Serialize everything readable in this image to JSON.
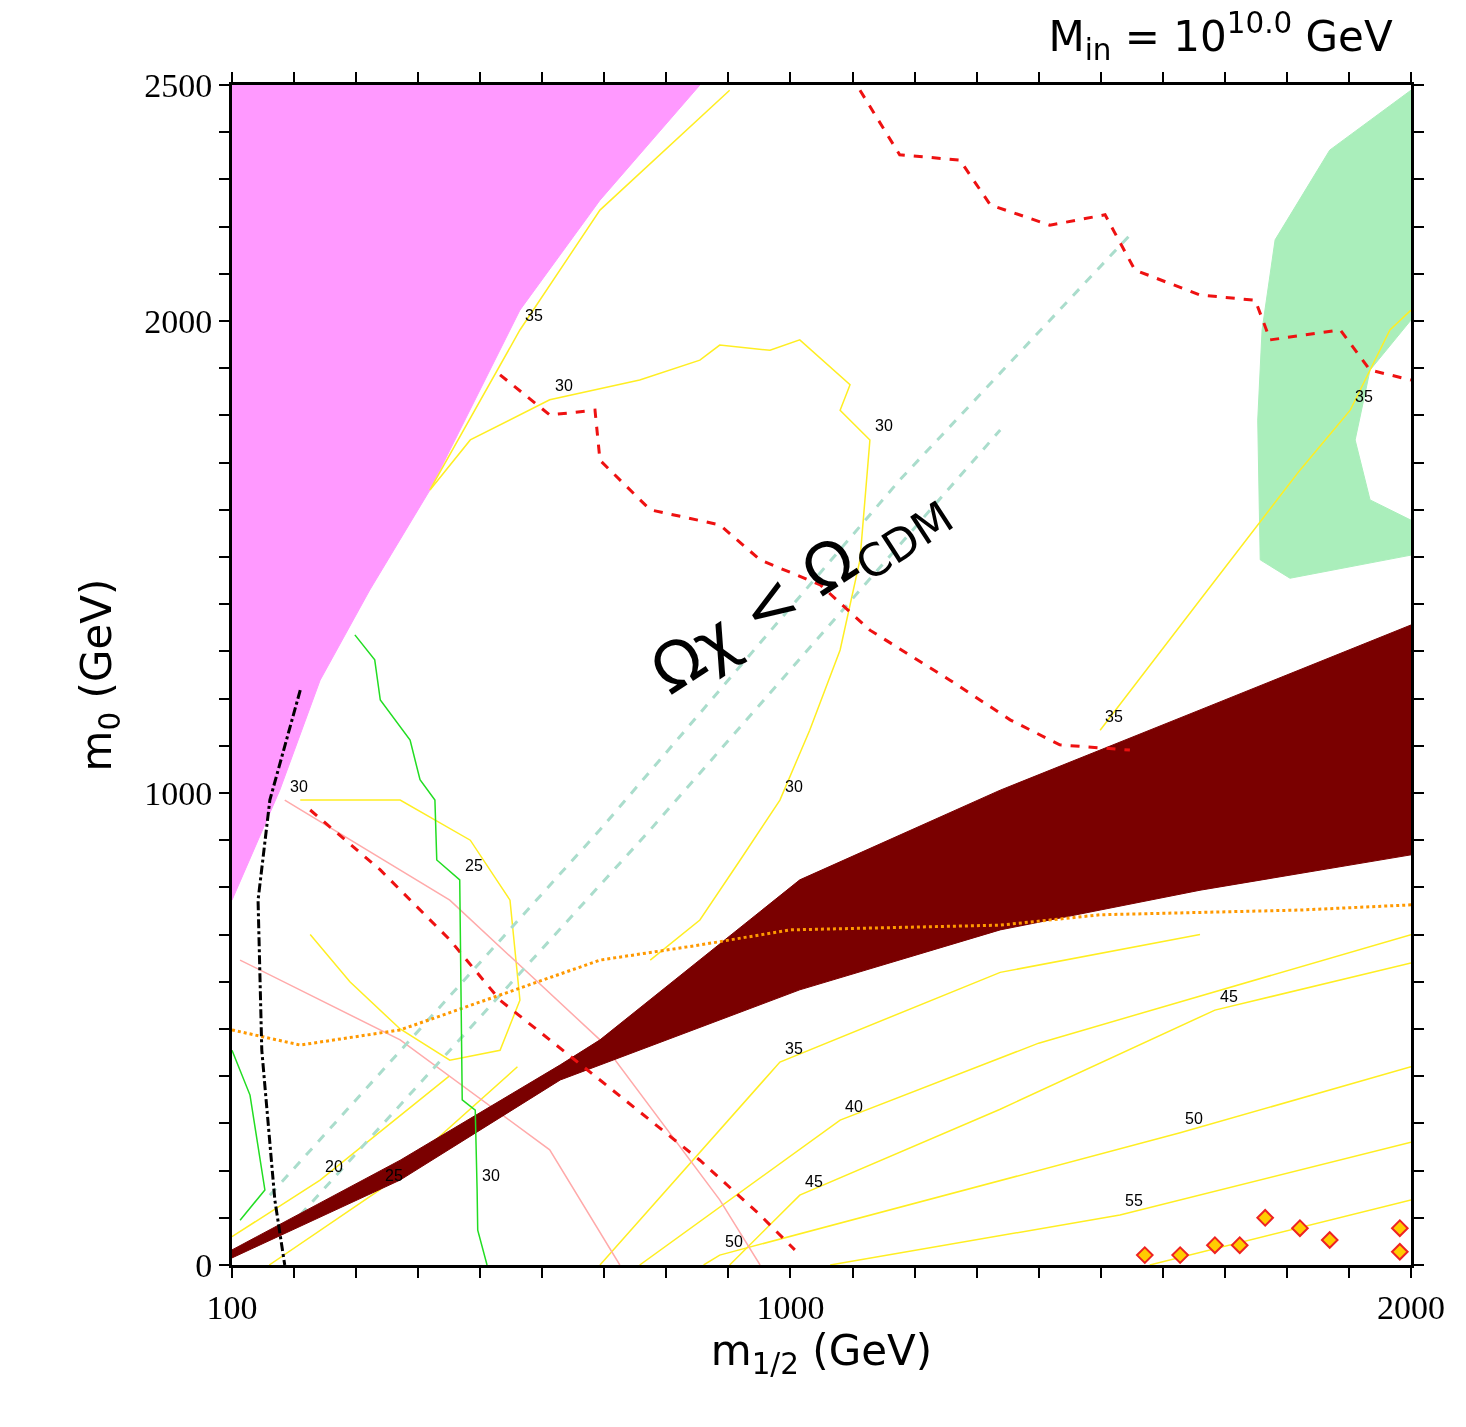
{
  "chart_data": {
    "type": "line",
    "title": "M$_{in}$ = 10$^{10.0}$ GeV",
    "xlabel": "m$_{1/2}$ (GeV)",
    "ylabel": "m$_{0}$ (GeV)",
    "xlim": [
      100,
      2000
    ],
    "ylim": [
      0,
      2500
    ],
    "xticks": [
      100,
      {
        "value": 200,
        "label": null
      },
      {
        "value": 300,
        "label": null
      },
      {
        "value": 400,
        "label": null
      },
      {
        "value": 500,
        "label": null
      },
      {
        "value": 600,
        "label": null
      },
      {
        "value": 700,
        "label": null
      },
      {
        "value": 800,
        "label": null
      },
      {
        "value": 900,
        "label": null
      },
      1000,
      {
        "value": 1100,
        "label": null
      },
      {
        "value": 1200,
        "label": null
      },
      {
        "value": 1300,
        "label": null
      },
      {
        "value": 1400,
        "label": null
      },
      {
        "value": 1500,
        "label": null
      },
      {
        "value": 1600,
        "label": null
      },
      {
        "value": 1700,
        "label": null
      },
      {
        "value": 1800,
        "label": null
      },
      {
        "value": 1900,
        "label": null
      },
      2000
    ],
    "yticks": [
      0,
      {
        "value": 100,
        "label": null
      },
      {
        "value": 200,
        "label": null
      },
      {
        "value": 300,
        "label": null
      },
      {
        "value": 400,
        "label": null
      },
      {
        "value": 500,
        "label": null
      },
      {
        "value": 600,
        "label": null
      },
      {
        "value": 700,
        "label": null
      },
      {
        "value": 800,
        "label": null
      },
      {
        "value": 900,
        "label": null
      },
      1000,
      {
        "value": 1100,
        "label": null
      },
      {
        "value": 1200,
        "label": null
      },
      {
        "value": 1300,
        "label": null
      },
      {
        "value": 1400,
        "label": null
      },
      {
        "value": 1500,
        "label": null
      },
      {
        "value": 1600,
        "label": null
      },
      {
        "value": 1700,
        "label": null
      },
      {
        "value": 1800,
        "label": null
      },
      {
        "value": 1900,
        "label": null
      },
      2000,
      {
        "value": 2100,
        "label": null
      },
      {
        "value": 2200,
        "label": null
      },
      {
        "value": 2300,
        "label": null
      },
      {
        "value": 2400,
        "label": null
      },
      2500
    ],
    "series": [
      {
        "type": "area",
        "color": "#ff99ff",
        "x": [
          100,
          854,
          693,
          564,
          419,
          322,
          242,
          177,
          100
        ],
        "values": [
          2500,
          2500,
          2256,
          2023,
          1642,
          1430,
          1239,
          1006,
          773
        ]
      },
      {
        "type": "area",
        "color": "#aaeebb",
        "x": [
          2000,
          1869,
          1781,
          1760,
          1753,
          1757,
          1805,
          2000,
          2000,
          1934,
          1910,
          1934,
          2000
        ],
        "values": [
          2489,
          2362,
          2172,
          1981,
          1790,
          1494,
          1455,
          1504,
          1578,
          1621,
          1748,
          1896,
          2002
        ]
      },
      {
        "color": "#ffee22",
        "line_style": "solid",
        "x": [
          419,
          484,
          612,
          757,
          854,
          886,
          967,
          1015,
          1096,
          1080,
          1128,
          1112,
          1080,
          1031,
          983,
          919,
          854,
          774
        ],
        "values": [
          1642,
          1748,
          1833,
          1875,
          1917,
          1949,
          1938,
          1960,
          1865,
          1811,
          1748,
          1494,
          1303,
          1133,
          985,
          858,
          731,
          646
        ]
      },
      {
        "color": "#ffee22",
        "line_style": "solid",
        "x": [
          1499,
          1660,
          1821,
          1902,
          1966,
          2000
        ],
        "values": [
          1133,
          1409,
          1684,
          1811,
          1981,
          2023
        ]
      },
      {
        "color": "#ffee22",
        "line_style": "solid",
        "x": [
          419,
          564,
          693,
          902
        ],
        "values": [
          1642,
          1981,
          2235,
          2489
        ]
      },
      {
        "color": "#ffee22",
        "line_style": "solid",
        "x": [
          210,
          371,
          484,
          548,
          564,
          532,
          451,
          371,
          290,
          226
        ],
        "values": [
          985,
          985,
          900,
          773,
          561,
          455,
          434,
          500,
          600,
          700
        ]
      },
      {
        "color": "#ffee22",
        "line_style": "solid",
        "x": [
          693,
          983,
          1338,
          1660
        ],
        "values": [
          0,
          430,
          620,
          700
        ]
      },
      {
        "color": "#ffee22",
        "line_style": "solid",
        "x": [
          757,
          1080,
          1400,
          2000
        ],
        "values": [
          0,
          307,
          470,
          700
        ]
      },
      {
        "color": "#ffee22",
        "line_style": "solid",
        "x": [
          902,
          1015,
          1338,
          1684,
          2000
        ],
        "values": [
          0,
          148,
          330,
          540,
          640
        ]
      },
      {
        "color": "#ffee22",
        "line_style": "solid",
        "x": [
          860,
          886,
          1628,
          2000
        ],
        "values": [
          0,
          21,
          280,
          420
        ]
      },
      {
        "color": "#ffee22",
        "line_style": "solid",
        "x": [
          1064,
          1531,
          2000
        ],
        "values": [
          0,
          106,
          260
        ]
      },
      {
        "color": "#ffee22",
        "line_style": "solid",
        "x": [
          1579,
          2000
        ],
        "values": [
          0,
          138
        ]
      },
      {
        "color": "#ffee22",
        "line_style": "solid",
        "x": [
          100,
          242,
          450
        ],
        "values": [
          60,
          180,
          400
        ]
      },
      {
        "color": "#ffee22",
        "line_style": "solid",
        "x": [
          160,
          338,
          560
        ],
        "values": [
          0,
          159,
          420
        ]
      },
      {
        "color": "#ffaaaa",
        "line_style": "solid",
        "x": [
          185,
          451,
          693,
          886,
          951
        ],
        "values": [
          985,
          773,
          477,
          138,
          0
        ]
      },
      {
        "color": "#ffaaaa",
        "line_style": "solid",
        "x": [
          113,
          371,
          612,
          725
        ],
        "values": [
          646,
          477,
          244,
          0
        ]
      },
      {
        "color": "#aaddcc",
        "line_style": "dashed",
        "x": [
          161,
          693,
          1176,
          1547
        ],
        "values": [
          148,
          922,
          1663,
          2182
        ]
      },
      {
        "color": "#aaddcc",
        "line_style": "dashed",
        "x": [
          210,
          774,
          1338
        ],
        "values": [
          106,
          922,
          1769
        ]
      },
      {
        "type": "area",
        "color": "#7a0000",
        "x": [
          100,
          371,
          629,
          1015,
          1338,
          1660,
          2000,
          2000,
          1660,
          1338,
          1015,
          693,
          629,
          371,
          100
        ],
        "values": [
          15,
          180,
          392,
          583,
          710,
          794,
          869,
          1356,
          1176,
          1006,
          816,
          477,
          424,
          222,
          32
        ]
      },
      {
        "color": "#ee1111",
        "line_style": "dashed",
        "x": [
          226,
          339,
          451,
          532,
          693,
          854,
          951,
          1007
        ],
        "values": [
          964,
          837,
          689,
          561,
          392,
          222,
          106,
          32
        ]
      },
      {
        "color": "#ee1111",
        "line_style": "dashed",
        "x": [
          532,
          612,
          685,
          693,
          774,
          886,
          951,
          1048,
          1128,
          1257,
          1354,
          1434,
          1547
        ],
        "values": [
          1886,
          1801,
          1811,
          1705,
          1600,
          1568,
          1494,
          1441,
          1345,
          1239,
          1155,
          1102,
          1091
        ]
      },
      {
        "color": "#ee1111",
        "line_style": "dashed",
        "x": [
          1112,
          1176,
          1273,
          1322,
          1418,
          1507,
          1555,
          1660,
          1749,
          1773,
          1886,
          1934,
          2000
        ],
        "values": [
          2489,
          2352,
          2341,
          2246,
          2203,
          2225,
          2108,
          2055,
          2044,
          1960,
          1981,
          1896,
          1875
        ]
      },
      {
        "color": "#ff9900",
        "line_style": "dotted",
        "x": [
          100,
          210,
          371,
          532,
          693,
          854,
          999,
          1338,
          1499,
          1821,
          2000
        ],
        "values": [
          498,
          466,
          498,
          572,
          646,
          678,
          710,
          720,
          742,
          752,
          763
        ]
      },
      {
        "color": "#22dd22",
        "line_style": "solid",
        "x": [
          298,
          330,
          339,
          387,
          403,
          427,
          430,
          467,
          471,
          492,
          495,
          496,
          511
        ],
        "values": [
          1335,
          1282,
          1197,
          1112,
          1028,
          985,
          858,
          816,
          350,
          328,
          159,
          74,
          0
        ]
      },
      {
        "color": "#22dd22",
        "line_style": "solid",
        "x": [
          100,
          129,
          153,
          113
        ],
        "values": [
          455,
          360,
          159,
          95
        ]
      },
      {
        "color": "#000000",
        "line_style": "dashdot",
        "x": [
          210,
          161,
          142,
          148,
          169,
          185
        ],
        "values": [
          1218,
          985,
          773,
          455,
          138,
          0
        ]
      },
      {
        "type": "scatter",
        "color": "#ffcc00",
        "marker": "diamond",
        "x": [
          1765,
          1821,
          1684,
          1724,
          1628,
          1571,
          1982,
          1982,
          1869
        ],
        "values": [
          100,
          78,
          42,
          42,
          21,
          21,
          78,
          28,
          53
        ]
      }
    ],
    "annotations": [
      {
        "text": "35",
        "x": 564,
        "y": 1981
      },
      {
        "text": "30",
        "x": 612,
        "y": 1833
      },
      {
        "text": "30",
        "x": 1128,
        "y": 1748
      },
      {
        "text": "35",
        "x": 1902,
        "y": 1811
      },
      {
        "text": "35",
        "x": 1499,
        "y": 1133
      },
      {
        "text": "30",
        "x": 983,
        "y": 985
      },
      {
        "text": "25",
        "x": 467,
        "y": 816
      },
      {
        "text": "30",
        "x": 185,
        "y": 985
      },
      {
        "text": "45",
        "x": 1684,
        "y": 540
      },
      {
        "text": "35",
        "x": 983,
        "y": 430
      },
      {
        "text": "40",
        "x": 1080,
        "y": 307
      },
      {
        "text": "50",
        "x": 1628,
        "y": 280
      },
      {
        "text": "45",
        "x": 1015,
        "y": 148
      },
      {
        "text": "55",
        "x": 1531,
        "y": 106
      },
      {
        "text": "30",
        "x": 495,
        "y": 159
      },
      {
        "text": "25",
        "x": 338,
        "y": 159
      },
      {
        "text": "20",
        "x": 242,
        "y": 180
      },
      {
        "text": "50",
        "x": 886,
        "y": 21
      },
      {
        "text": "Ωχ < Ω$_{CDM}$",
        "x": 1015,
        "y": 1430
      }
    ]
  }
}
